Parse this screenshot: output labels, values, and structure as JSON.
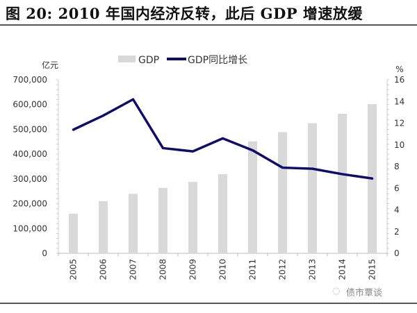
{
  "title": "图 20:   2010 年国内经济反转，此后 GDP 增速放缓",
  "watermark": "债市覃谈",
  "chart_data": {
    "type": "bar+line",
    "title": "2010 年国内经济反转，此后 GDP 增速放缓",
    "categories": [
      "2005",
      "2006",
      "2007",
      "2008",
      "2009",
      "2010",
      "2011",
      "2012",
      "2013",
      "2014",
      "2015"
    ],
    "series": [
      {
        "name": "GDP",
        "type": "bar",
        "axis": "left",
        "color": "#d9d9d9",
        "values": [
          160000,
          210000,
          240000,
          264000,
          288000,
          319000,
          452000,
          489000,
          525000,
          563000,
          602000
        ]
      },
      {
        "name": "GDP同比增长",
        "type": "line",
        "axis": "right",
        "color": "#0d0d6b",
        "values": [
          11.4,
          12.7,
          14.2,
          9.7,
          9.4,
          10.6,
          9.5,
          7.9,
          7.8,
          7.3,
          6.9
        ]
      }
    ],
    "left_axis": {
      "label": "亿元",
      "ylim": [
        0,
        700000
      ],
      "ticks": [
        "0",
        "100,000",
        "200,000",
        "300,000",
        "400,000",
        "500,000",
        "600,000",
        "700,000"
      ]
    },
    "right_axis": {
      "label": "%",
      "ylim": [
        0,
        16
      ],
      "ticks": [
        "0",
        "2",
        "4",
        "6",
        "8",
        "10",
        "12",
        "14",
        "16"
      ]
    },
    "legend": "top-center",
    "grid": false
  }
}
